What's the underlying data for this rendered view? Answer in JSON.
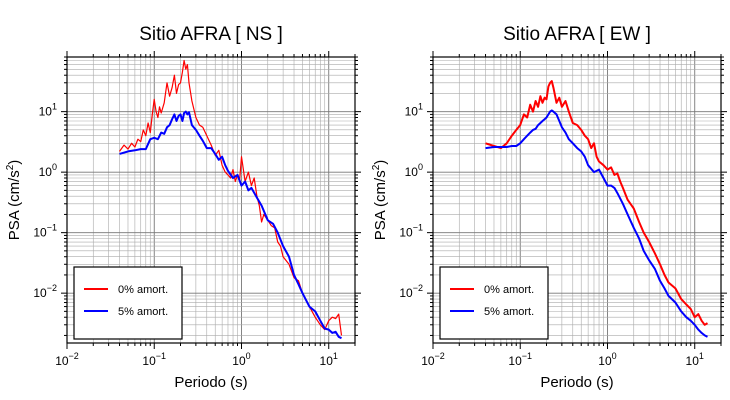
{
  "chart_data": [
    {
      "type": "line",
      "title": "Sitio AFRA [ NS ]",
      "xlabel": "Periodo (s)",
      "ylabel_main": "PSA (cm/s",
      "ylabel_sup": "2",
      "ylabel_close": ")",
      "x_scale": "log",
      "y_scale": "log",
      "xlim": [
        0.01,
        20
      ],
      "ylim": [
        0.0015,
        80
      ],
      "grid": true,
      "legend_position": "lower-left",
      "x_ticks": [
        {
          "value": 0.01,
          "base": "10",
          "exp": "−2"
        },
        {
          "value": 0.1,
          "base": "10",
          "exp": "−1"
        },
        {
          "value": 1,
          "base": "10",
          "exp": "0"
        },
        {
          "value": 10,
          "base": "10",
          "exp": "1"
        }
      ],
      "y_ticks": [
        {
          "value": 0.01,
          "base": "10",
          "exp": "−2"
        },
        {
          "value": 0.1,
          "base": "10",
          "exp": "−1"
        },
        {
          "value": 1,
          "base": "10",
          "exp": "0"
        },
        {
          "value": 10,
          "base": "10",
          "exp": "1"
        }
      ],
      "series": [
        {
          "name": "0% amort.",
          "color": "#ff0000",
          "x": [
            0.04,
            0.045,
            0.05,
            0.055,
            0.06,
            0.065,
            0.07,
            0.075,
            0.08,
            0.085,
            0.09,
            0.095,
            0.1,
            0.105,
            0.11,
            0.115,
            0.12,
            0.13,
            0.14,
            0.15,
            0.16,
            0.17,
            0.18,
            0.19,
            0.2,
            0.21,
            0.22,
            0.23,
            0.24,
            0.25,
            0.27,
            0.3,
            0.33,
            0.36,
            0.4,
            0.45,
            0.5,
            0.55,
            0.6,
            0.65,
            0.7,
            0.75,
            0.8,
            0.85,
            0.9,
            0.95,
            1.0,
            1.1,
            1.2,
            1.3,
            1.4,
            1.5,
            1.6,
            1.7,
            1.8,
            2.0,
            2.2,
            2.4,
            2.6,
            2.8,
            3.0,
            3.5,
            4.0,
            4.5,
            5.0,
            6.0,
            7.0,
            8.0,
            9.0,
            10.0,
            11.0,
            12.0,
            13.0,
            14.0
          ],
          "y": [
            2.2,
            2.8,
            2.4,
            3.0,
            2.6,
            3.5,
            3.2,
            5.0,
            4.0,
            6.5,
            4.5,
            9.0,
            16.0,
            10.0,
            8.0,
            12.0,
            9.5,
            14.0,
            30.0,
            18.0,
            25.0,
            40.0,
            20.0,
            28.0,
            30.0,
            45.0,
            70.0,
            50.0,
            60.0,
            30.0,
            15.0,
            8.0,
            6.0,
            5.5,
            4.0,
            2.8,
            1.9,
            2.3,
            1.3,
            1.0,
            0.9,
            0.8,
            1.1,
            0.7,
            0.9,
            0.7,
            1.8,
            0.7,
            1.0,
            0.6,
            0.8,
            0.4,
            0.28,
            0.15,
            0.2,
            0.16,
            0.13,
            0.12,
            0.07,
            0.06,
            0.04,
            0.03,
            0.018,
            0.016,
            0.01,
            0.006,
            0.004,
            0.003,
            0.0025,
            0.0035,
            0.004,
            0.0038,
            0.0045,
            0.002
          ]
        },
        {
          "name": "5% amort.",
          "color": "#0000ff",
          "x": [
            0.04,
            0.05,
            0.06,
            0.07,
            0.08,
            0.09,
            0.1,
            0.11,
            0.12,
            0.13,
            0.14,
            0.15,
            0.16,
            0.17,
            0.18,
            0.19,
            0.2,
            0.21,
            0.22,
            0.23,
            0.24,
            0.25,
            0.27,
            0.3,
            0.33,
            0.36,
            0.4,
            0.45,
            0.5,
            0.55,
            0.6,
            0.65,
            0.7,
            0.8,
            0.9,
            1.0,
            1.1,
            1.2,
            1.3,
            1.5,
            1.7,
            2.0,
            2.3,
            2.6,
            3.0,
            3.5,
            4.0,
            4.5,
            5.0,
            6.0,
            7.0,
            8.0,
            9.0,
            10.0,
            11.0,
            12.0,
            13.0,
            14.0
          ],
          "y": [
            2.0,
            2.2,
            2.3,
            2.4,
            2.4,
            3.5,
            3.7,
            3.5,
            4.5,
            4.3,
            5.5,
            6.0,
            7.5,
            9.0,
            7.0,
            8.5,
            9.0,
            7.0,
            9.5,
            10.0,
            9.0,
            9.8,
            6.0,
            5.0,
            4.0,
            3.3,
            2.5,
            2.5,
            2.0,
            1.6,
            1.8,
            1.3,
            1.05,
            0.8,
            0.9,
            0.6,
            0.7,
            0.5,
            0.55,
            0.38,
            0.28,
            0.16,
            0.14,
            0.1,
            0.06,
            0.04,
            0.02,
            0.014,
            0.01,
            0.006,
            0.005,
            0.0035,
            0.0026,
            0.0025,
            0.0022,
            0.0023,
            0.0019,
            0.0018
          ]
        }
      ]
    },
    {
      "type": "line",
      "title": "Sitio AFRA [ EW ]",
      "xlabel": "Periodo (s)",
      "ylabel_main": "PSA (cm/s",
      "ylabel_sup": "2",
      "ylabel_close": ")",
      "x_scale": "log",
      "y_scale": "log",
      "xlim": [
        0.01,
        20
      ],
      "ylim": [
        0.0015,
        80
      ],
      "grid": true,
      "legend_position": "lower-left",
      "x_ticks": [
        {
          "value": 0.01,
          "base": "10",
          "exp": "−2"
        },
        {
          "value": 0.1,
          "base": "10",
          "exp": "−1"
        },
        {
          "value": 1,
          "base": "10",
          "exp": "0"
        },
        {
          "value": 10,
          "base": "10",
          "exp": "1"
        }
      ],
      "y_ticks": [
        {
          "value": 0.01,
          "base": "10",
          "exp": "−2"
        },
        {
          "value": 0.1,
          "base": "10",
          "exp": "−1"
        },
        {
          "value": 1,
          "base": "10",
          "exp": "0"
        },
        {
          "value": 10,
          "base": "10",
          "exp": "1"
        }
      ],
      "series": [
        {
          "name": "0% amort.",
          "color": "#ff0000",
          "x": [
            0.04,
            0.05,
            0.06,
            0.07,
            0.08,
            0.09,
            0.1,
            0.11,
            0.12,
            0.13,
            0.14,
            0.15,
            0.16,
            0.17,
            0.18,
            0.19,
            0.2,
            0.21,
            0.22,
            0.23,
            0.24,
            0.26,
            0.28,
            0.3,
            0.33,
            0.36,
            0.4,
            0.45,
            0.5,
            0.55,
            0.6,
            0.65,
            0.7,
            0.75,
            0.8,
            0.9,
            1.0,
            1.1,
            1.2,
            1.3,
            1.4,
            1.5,
            1.7,
            2.0,
            2.3,
            2.6,
            3.0,
            3.5,
            4.0,
            4.5,
            5.0,
            6.0,
            7.0,
            8.0,
            9.0,
            10.0,
            11.0,
            12.0,
            13.0,
            14.0
          ],
          "y": [
            3.0,
            2.7,
            2.5,
            3.0,
            4.0,
            5.0,
            6.0,
            9.0,
            8.0,
            13.0,
            10.0,
            15.0,
            12.0,
            18.0,
            14.0,
            17.0,
            16.0,
            26.0,
            30.0,
            32.0,
            25.0,
            14.0,
            17.0,
            12.0,
            15.0,
            10.0,
            6.5,
            6.0,
            5.0,
            4.0,
            3.5,
            2.5,
            3.0,
            1.8,
            1.5,
            1.3,
            1.1,
            1.2,
            0.9,
            0.95,
            0.7,
            0.55,
            0.35,
            0.25,
            0.15,
            0.1,
            0.07,
            0.045,
            0.03,
            0.02,
            0.015,
            0.012,
            0.008,
            0.0065,
            0.0055,
            0.004,
            0.0045,
            0.0035,
            0.003,
            0.0032
          ]
        },
        {
          "name": "5% amort.",
          "color": "#0000ff",
          "x": [
            0.04,
            0.05,
            0.06,
            0.07,
            0.08,
            0.09,
            0.1,
            0.11,
            0.12,
            0.13,
            0.14,
            0.15,
            0.16,
            0.17,
            0.18,
            0.19,
            0.2,
            0.21,
            0.22,
            0.23,
            0.24,
            0.26,
            0.28,
            0.3,
            0.33,
            0.36,
            0.4,
            0.45,
            0.5,
            0.55,
            0.6,
            0.7,
            0.8,
            0.9,
            1.0,
            1.1,
            1.2,
            1.3,
            1.5,
            1.7,
            2.0,
            2.3,
            2.6,
            3.0,
            3.5,
            4.0,
            4.5,
            5.0,
            6.0,
            7.0,
            8.0,
            9.0,
            10.0,
            11.0,
            12.0,
            13.0,
            14.0
          ],
          "y": [
            2.5,
            2.6,
            2.6,
            2.6,
            2.7,
            2.7,
            3.0,
            3.5,
            4.0,
            4.5,
            5.0,
            5.2,
            6.0,
            6.5,
            7.0,
            7.5,
            8.0,
            9.0,
            10.0,
            10.5,
            10.0,
            9.0,
            7.0,
            5.5,
            4.5,
            3.5,
            3.0,
            2.5,
            2.2,
            1.8,
            1.3,
            1.0,
            1.1,
            0.8,
            0.6,
            0.6,
            0.55,
            0.45,
            0.3,
            0.2,
            0.12,
            0.08,
            0.05,
            0.035,
            0.025,
            0.016,
            0.012,
            0.009,
            0.007,
            0.005,
            0.004,
            0.0035,
            0.003,
            0.0025,
            0.0022,
            0.002,
            0.0019
          ]
        }
      ]
    }
  ]
}
